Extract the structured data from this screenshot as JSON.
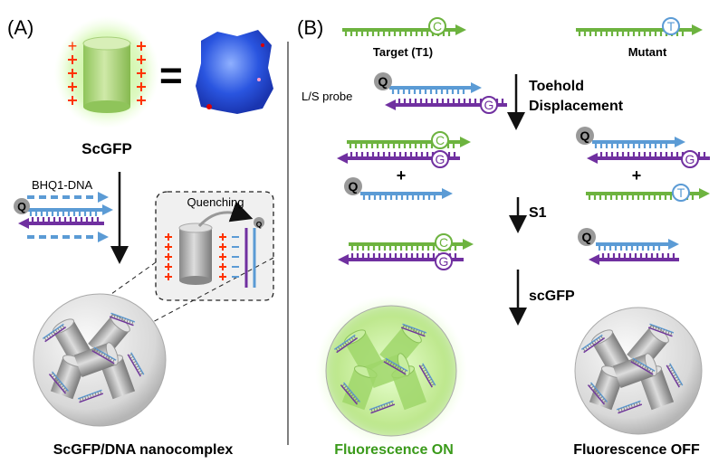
{
  "panel_a": {
    "label": "(A)",
    "protein_label": "ScGFP",
    "equals": "=",
    "charge_symbol": "+",
    "dna_label": "BHQ1-DNA",
    "quencher": "Q",
    "inset_title": "Quenching",
    "complex_label": "ScGFP/DNA nanocomplex"
  },
  "panel_b": {
    "label": "(B)",
    "target_label": "Target (T1)",
    "mutant_label": "Mutant",
    "probe_label": "L/S probe",
    "target_base": "C",
    "mutant_base": "T",
    "probe_base": "G",
    "quencher": "Q",
    "plus": "+",
    "step1": [
      "Toehold",
      "Displacement"
    ],
    "step2": "S1",
    "step3": "scGFP",
    "result_on": "Fluorescence ON",
    "result_off": "Fluorescence OFF"
  },
  "colors": {
    "green": "#6db33f",
    "blue": "#5b9bd5",
    "purple": "#7030a0",
    "charge": "#ff3300",
    "on_text": "#3a9a1a"
  }
}
